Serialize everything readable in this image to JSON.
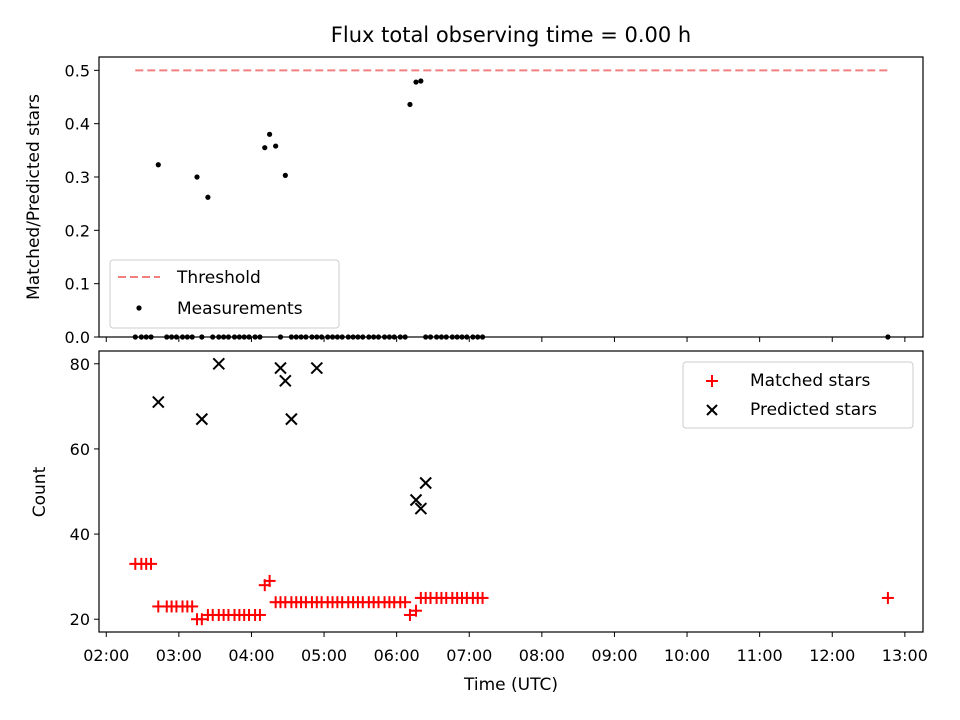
{
  "chart_data": [
    {
      "type": "scatter",
      "title": "Flux total observing time = 0.00 h",
      "xlabel": "",
      "ylabel": "Matched/Predicted stars",
      "ylim": [
        0,
        0.525
      ],
      "xlim": [
        "01:54",
        "13:15"
      ],
      "yticks": [
        0.0,
        0.1,
        0.2,
        0.3,
        0.4,
        0.5
      ],
      "yticklabels": [
        "0.0",
        "0.1",
        "0.2",
        "0.3",
        "0.4",
        "0.5"
      ],
      "grid": false,
      "legend": "lower-left",
      "series": [
        {
          "name": "Threshold",
          "kind": "dashed-line",
          "color": "#f08080",
          "x": [
            "02:24",
            "12:46"
          ],
          "y": [
            0.5,
            0.5
          ]
        },
        {
          "name": "Measurements",
          "kind": "points",
          "color": "#000000",
          "x": [
            "02:24",
            "02:29",
            "02:33",
            "02:37",
            "02:43",
            "02:50",
            "02:54",
            "02:58",
            "03:03",
            "03:07",
            "03:11",
            "03:15",
            "03:19",
            "03:24",
            "03:28",
            "03:33",
            "03:37",
            "03:41",
            "03:46",
            "03:50",
            "03:54",
            "03:58",
            "04:03",
            "04:07",
            "04:11",
            "04:15",
            "04:20",
            "04:24",
            "04:28",
            "04:33",
            "04:37",
            "04:41",
            "04:45",
            "04:50",
            "04:54",
            "04:58",
            "05:03",
            "05:07",
            "05:11",
            "05:15",
            "05:20",
            "05:24",
            "05:28",
            "05:32",
            "05:37",
            "05:41",
            "05:45",
            "05:50",
            "05:54",
            "05:58",
            "06:03",
            "06:07",
            "06:11",
            "06:16",
            "06:20",
            "06:24",
            "06:28",
            "06:33",
            "06:37",
            "06:41",
            "06:46",
            "06:50",
            "06:54",
            "06:58",
            "07:03",
            "07:07",
            "07:11",
            "12:46"
          ],
          "y": [
            0,
            0,
            0,
            0,
            0.323,
            0,
            0,
            0,
            0,
            0,
            0,
            0.3,
            0,
            0.262,
            0,
            0,
            0,
            0,
            0,
            0,
            0,
            0,
            0,
            0,
            0.355,
            0.38,
            0.358,
            0,
            0.303,
            0,
            0,
            0,
            0,
            0,
            0,
            0,
            0,
            0,
            0,
            0,
            0,
            0,
            0,
            0,
            0,
            0,
            0,
            0,
            0,
            0,
            0,
            0,
            0.436,
            0.478,
            0.48,
            0,
            0,
            0,
            0,
            0,
            0,
            0,
            0,
            0,
            0,
            0,
            0,
            0
          ]
        }
      ]
    },
    {
      "type": "scatter",
      "title": "",
      "xlabel": "Time (UTC)",
      "ylabel": "Count",
      "ylim": [
        17,
        83
      ],
      "xlim": [
        "01:54",
        "13:15"
      ],
      "xticks": [
        "02:00",
        "03:00",
        "04:00",
        "05:00",
        "06:00",
        "07:00",
        "08:00",
        "09:00",
        "10:00",
        "11:00",
        "12:00",
        "13:00"
      ],
      "yticks": [
        20,
        40,
        60,
        80
      ],
      "yticklabels": [
        "20",
        "40",
        "60",
        "80"
      ],
      "grid": false,
      "legend": "top-right",
      "series": [
        {
          "name": "Matched stars",
          "marker": "+",
          "color": "#ff0000",
          "x": [
            "02:24",
            "02:29",
            "02:33",
            "02:37",
            "02:43",
            "02:50",
            "02:54",
            "02:58",
            "03:03",
            "03:07",
            "03:11",
            "03:15",
            "03:19",
            "03:24",
            "03:28",
            "03:33",
            "03:37",
            "03:41",
            "03:46",
            "03:50",
            "03:54",
            "03:58",
            "04:03",
            "04:07",
            "04:11",
            "04:15",
            "04:20",
            "04:24",
            "04:28",
            "04:33",
            "04:37",
            "04:41",
            "04:45",
            "04:50",
            "04:54",
            "04:58",
            "05:03",
            "05:07",
            "05:11",
            "05:15",
            "05:20",
            "05:24",
            "05:28",
            "05:32",
            "05:37",
            "05:41",
            "05:45",
            "05:50",
            "05:54",
            "05:58",
            "06:03",
            "06:07",
            "06:11",
            "06:16",
            "06:20",
            "06:24",
            "06:28",
            "06:33",
            "06:37",
            "06:41",
            "06:46",
            "06:50",
            "06:54",
            "06:58",
            "07:03",
            "07:07",
            "07:11",
            "12:46"
          ],
          "y": [
            33,
            33,
            33,
            33,
            23,
            23,
            23,
            23,
            23,
            23,
            23,
            20,
            20,
            21,
            21,
            21,
            21,
            21,
            21,
            21,
            21,
            21,
            21,
            21,
            28,
            29,
            24,
            24,
            24,
            24,
            24,
            24,
            24,
            24,
            24,
            24,
            24,
            24,
            24,
            24,
            24,
            24,
            24,
            24,
            24,
            24,
            24,
            24,
            24,
            24,
            24,
            24,
            21,
            22,
            25,
            25,
            25,
            25,
            25,
            25,
            25,
            25,
            25,
            25,
            25,
            25,
            25,
            25
          ]
        },
        {
          "name": "Predicted stars",
          "marker": "x",
          "color": "#000000",
          "x": [
            "02:43",
            "03:19",
            "03:33",
            "04:24",
            "04:28",
            "04:33",
            "04:54",
            "06:16",
            "06:20",
            "06:24"
          ],
          "y": [
            71,
            67,
            80,
            79,
            76,
            67,
            79,
            48,
            46,
            52
          ]
        }
      ]
    }
  ]
}
